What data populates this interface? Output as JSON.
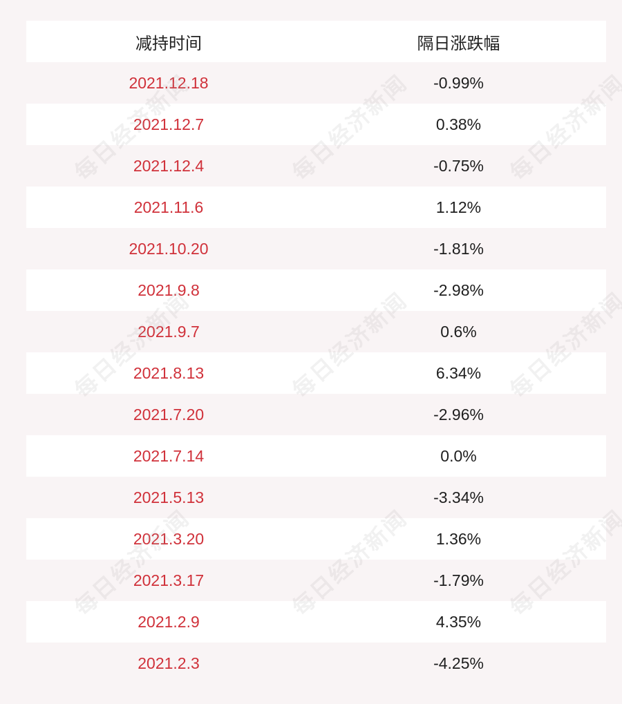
{
  "chart_data": {
    "type": "table",
    "columns": [
      "减持时间",
      "隔日涨跌幅"
    ],
    "rows": [
      [
        "2021.12.18",
        "-0.99%"
      ],
      [
        "2021.12.7",
        "0.38%"
      ],
      [
        "2021.12.4",
        "-0.75%"
      ],
      [
        "2021.11.6",
        "1.12%"
      ],
      [
        "2021.10.20",
        "-1.81%"
      ],
      [
        "2021.9.8",
        "-2.98%"
      ],
      [
        "2021.9.7",
        "0.6%"
      ],
      [
        "2021.8.13",
        "6.34%"
      ],
      [
        "2021.7.20",
        "-2.96%"
      ],
      [
        "2021.7.14",
        "0.0%"
      ],
      [
        "2021.5.13",
        "-3.34%"
      ],
      [
        "2021.3.20",
        "1.36%"
      ],
      [
        "2021.3.17",
        "-1.79%"
      ],
      [
        "2021.2.9",
        "4.35%"
      ],
      [
        "2021.2.3",
        "-4.25%"
      ]
    ]
  },
  "watermark": "每日经济新闻",
  "colors": {
    "date_text": "#d0313a",
    "value_text": "#1e1e1e",
    "row_alt": "#f9f4f5",
    "row_white": "#ffffff"
  }
}
